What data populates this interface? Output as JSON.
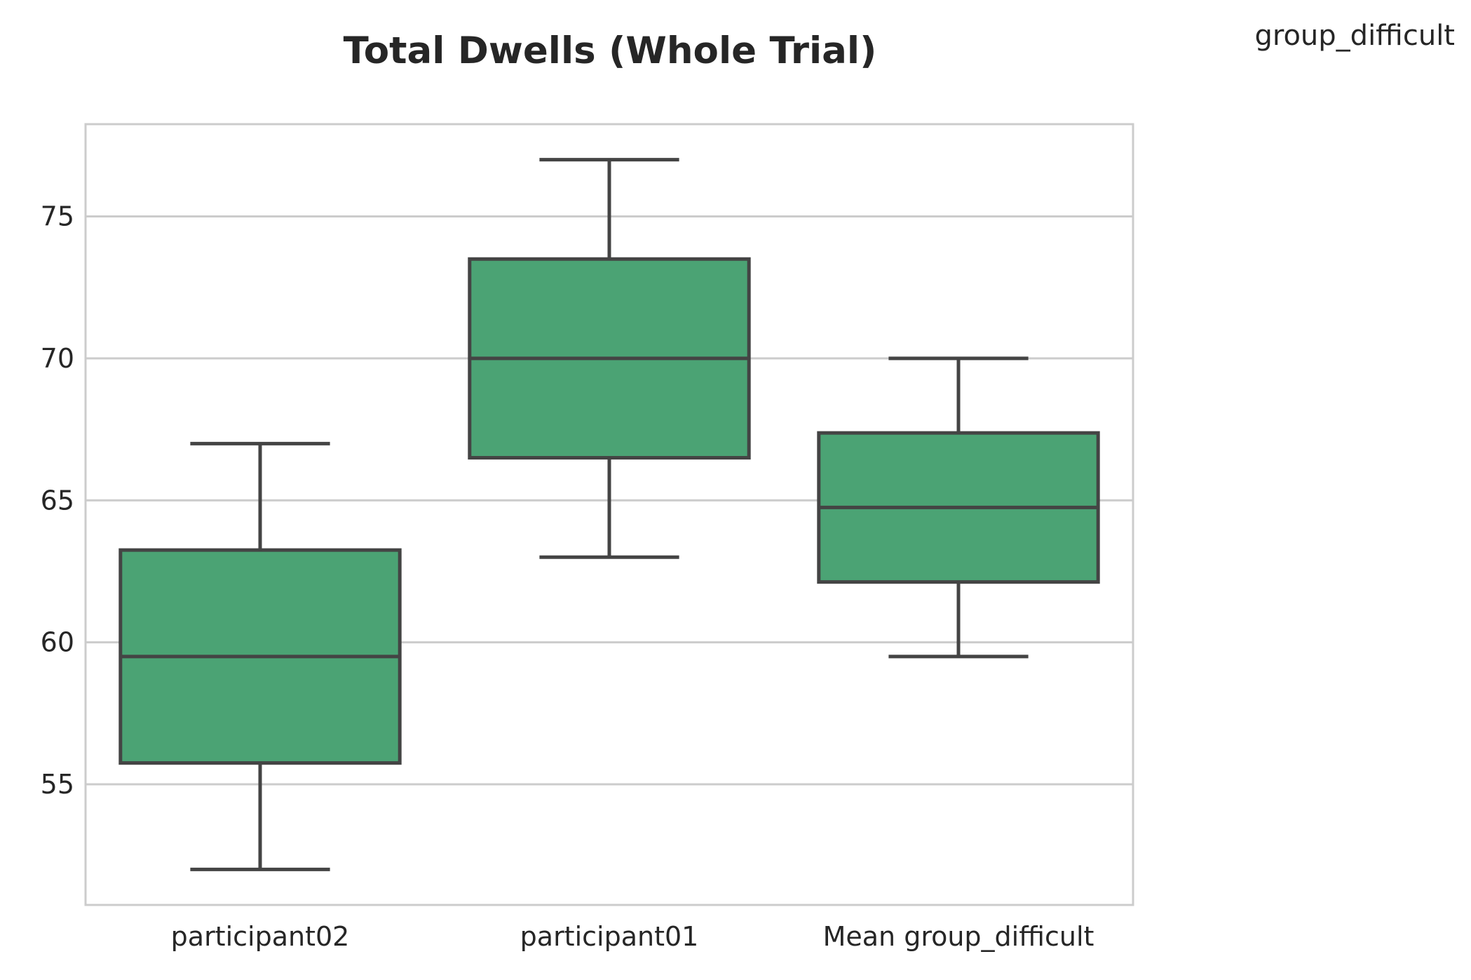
{
  "chart_data": {
    "type": "box",
    "title": "Total Dwells (Whole Trial)",
    "xlabel": "",
    "ylabel": "",
    "legend": {
      "title": "group_difficult",
      "placement": "top-right"
    },
    "categories": [
      "participant02",
      "participant01",
      "Mean group_difficult"
    ],
    "boxes": [
      {
        "category": "participant02",
        "whisker_low": 52.0,
        "q1": 55.75,
        "median": 59.5,
        "q3": 63.25,
        "whisker_high": 67.0
      },
      {
        "category": "participant01",
        "whisker_low": 63.0,
        "q1": 66.5,
        "median": 70.0,
        "q3": 73.5,
        "whisker_high": 77.0
      },
      {
        "category": "Mean group_difficult",
        "whisker_low": 59.5,
        "q1": 62.125,
        "median": 64.75,
        "q3": 67.375,
        "whisker_high": 70.0
      }
    ],
    "ylim": [
      50.75,
      78.25
    ],
    "yticks": [
      55,
      60,
      65,
      70,
      75
    ],
    "grid": true,
    "colors": {
      "box_fill": "#4ba374",
      "box_edge": "#444444",
      "grid": "#cccccc",
      "axes_edge": "#cccccc",
      "text": "#262626"
    }
  }
}
